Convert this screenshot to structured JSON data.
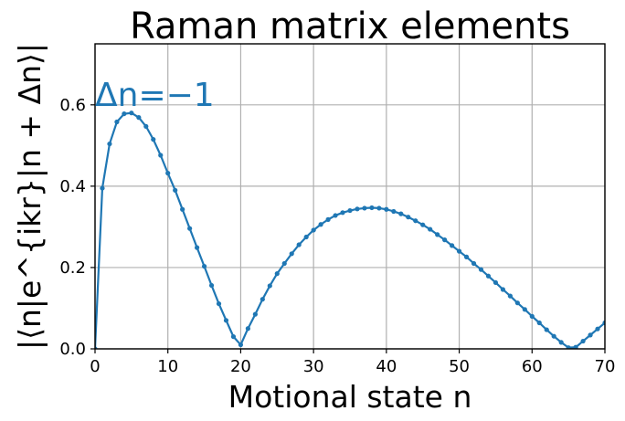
{
  "chart_data": {
    "type": "line",
    "title": "Raman matrix elements",
    "xlabel": "Motional state n",
    "ylabel": "|⟨n|e^{ikr}|n + Δn⟩|",
    "annotations": [
      {
        "text": "Δn=−1"
      }
    ],
    "xlim": [
      0,
      70
    ],
    "ylim": [
      0,
      0.75
    ],
    "x_ticks": [
      0,
      10,
      20,
      30,
      40,
      50,
      60,
      70
    ],
    "y_ticks": [
      0.0,
      0.2,
      0.4,
      0.6
    ],
    "x_tick_labels": [
      "0",
      "10",
      "20",
      "30",
      "40",
      "50",
      "60",
      "70"
    ],
    "y_tick_labels": [
      "0.0",
      "0.2",
      "0.4",
      "0.6"
    ],
    "grid": true,
    "series": [
      {
        "color": "#1f77b4",
        "x": [
          0,
          1,
          2,
          3,
          4,
          5,
          6,
          7,
          8,
          9,
          10,
          11,
          12,
          13,
          14,
          15,
          16,
          17,
          18,
          19,
          20,
          21,
          22,
          23,
          24,
          25,
          26,
          27,
          28,
          29,
          30,
          31,
          32,
          33,
          34,
          35,
          36,
          37,
          38,
          39,
          40,
          41,
          42,
          43,
          44,
          45,
          46,
          47,
          48,
          49,
          50,
          51,
          52,
          53,
          54,
          55,
          56,
          57,
          58,
          59,
          60,
          61,
          62,
          63,
          64,
          65,
          66,
          67,
          68,
          69,
          70
        ],
        "values": [
          0.0,
          0.395,
          0.504,
          0.558,
          0.578,
          0.58,
          0.569,
          0.547,
          0.515,
          0.476,
          0.432,
          0.39,
          0.343,
          0.296,
          0.249,
          0.203,
          0.156,
          0.111,
          0.07,
          0.03,
          0.01,
          0.05,
          0.085,
          0.122,
          0.155,
          0.185,
          0.21,
          0.234,
          0.256,
          0.275,
          0.292,
          0.306,
          0.318,
          0.328,
          0.335,
          0.34,
          0.344,
          0.346,
          0.347,
          0.346,
          0.343,
          0.338,
          0.332,
          0.324,
          0.315,
          0.305,
          0.294,
          0.281,
          0.268,
          0.254,
          0.24,
          0.226,
          0.21,
          0.195,
          0.179,
          0.163,
          0.146,
          0.13,
          0.113,
          0.097,
          0.08,
          0.064,
          0.047,
          0.031,
          0.016,
          0.003,
          0.004,
          0.019,
          0.034,
          0.049,
          0.064
        ]
      }
    ]
  }
}
